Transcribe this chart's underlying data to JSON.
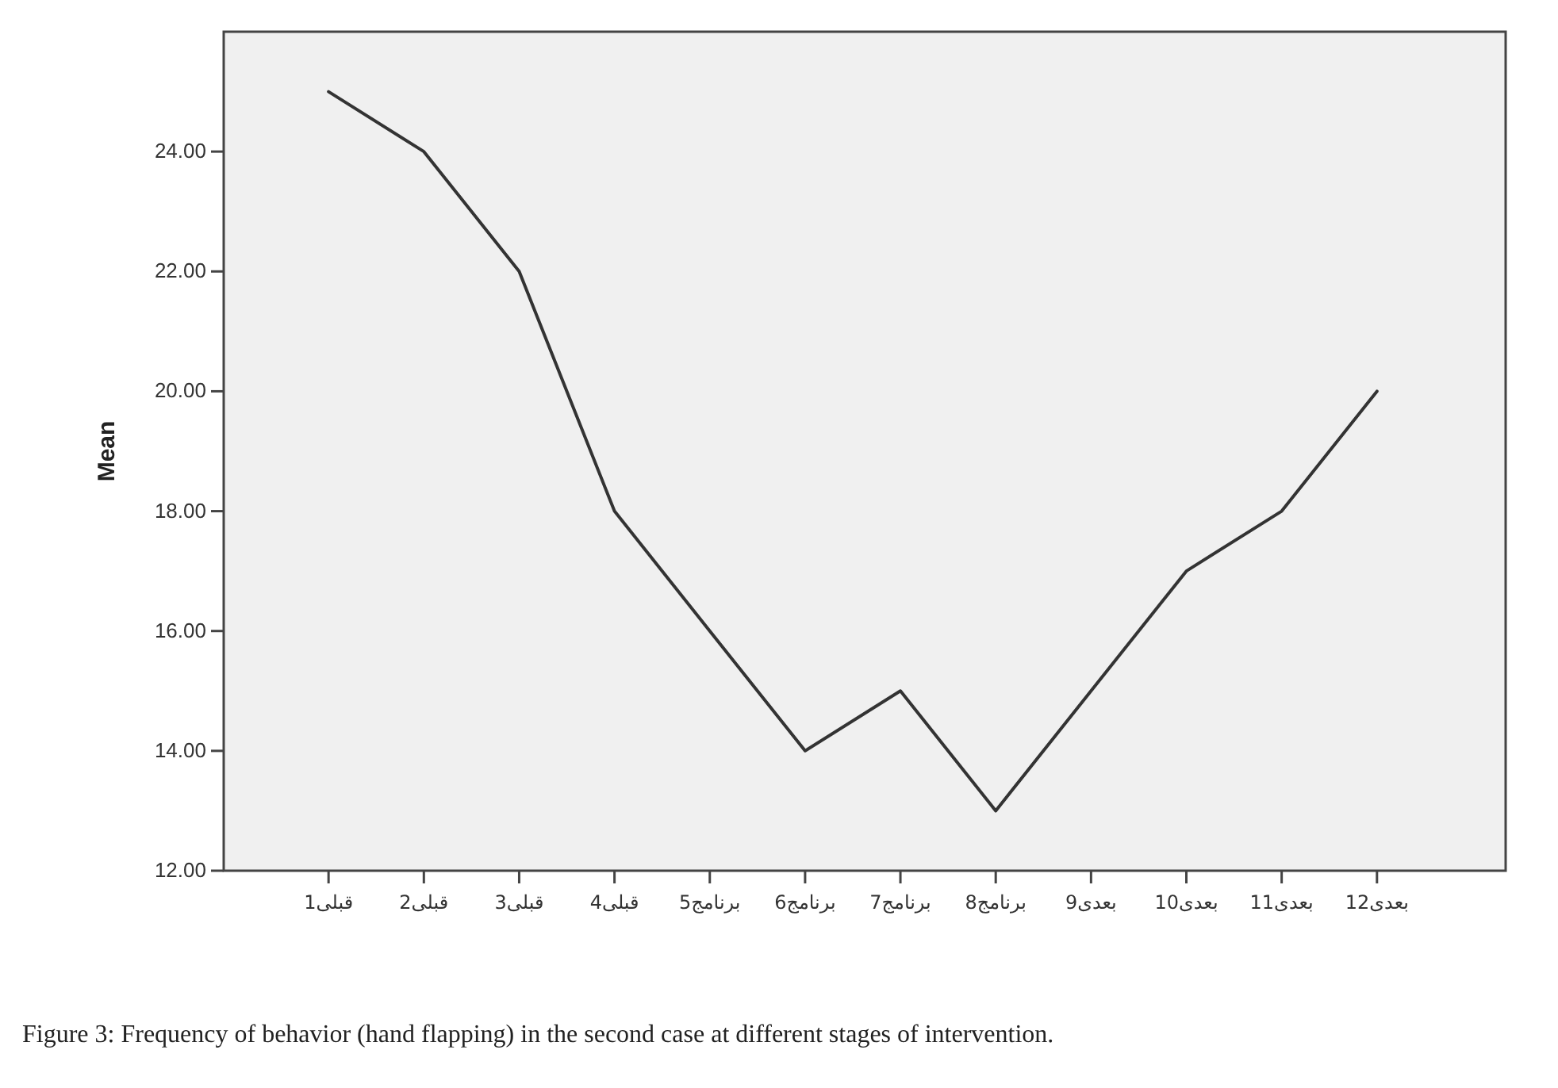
{
  "chart_data": {
    "type": "line",
    "ylabel": "Mean",
    "annotations": [
      "Figure 3: Frequency of behavior (hand flapping) in the second case at different stages of intervention."
    ],
    "categories": [
      "قبلی1",
      "قبلی2",
      "قبلی3",
      "قبلی4",
      "برنامج5",
      "برنامج6",
      "برنامج7",
      "برنامج8",
      "بعدی9",
      "بعدی10",
      "بعدی11",
      "بعدی12"
    ],
    "series": [
      {
        "color": "#333333",
        "values": [
          25,
          24,
          22,
          18,
          16,
          14,
          15,
          13,
          15,
          17,
          18,
          20
        ]
      }
    ],
    "ylim": [
      12,
      26
    ],
    "yticks": [
      {
        "value": 12,
        "label": "12.00"
      },
      {
        "value": 14,
        "label": "14.00"
      },
      {
        "value": 16,
        "label": "16.00"
      },
      {
        "value": 18,
        "label": "18.00"
      },
      {
        "value": 20,
        "label": "20.00"
      },
      {
        "value": 22,
        "label": "22.00"
      },
      {
        "value": 24,
        "label": "24.00"
      }
    ],
    "grid": false,
    "marker": "none",
    "line_style": "solid"
  }
}
